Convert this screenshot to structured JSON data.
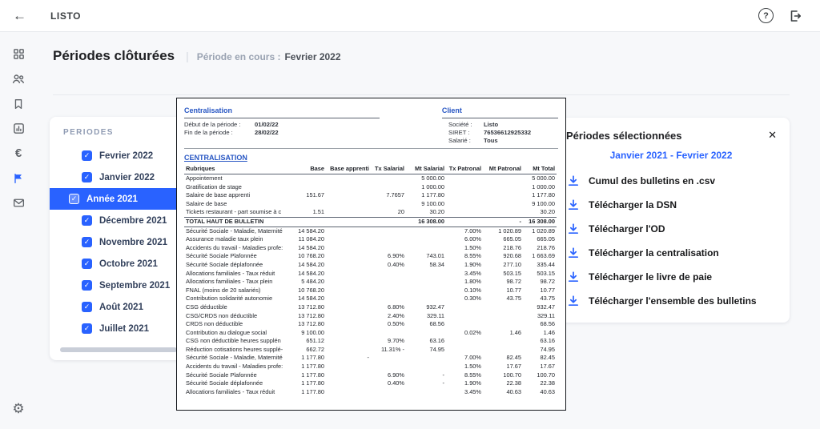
{
  "topbar": {
    "app_title": "LISTO"
  },
  "header": {
    "title": "Périodes clôturées",
    "separator": "|",
    "subtitle_label": "Période en cours :",
    "subtitle_value": "Fevrier 2022"
  },
  "periods_panel": {
    "title": "PERIODES",
    "check_glyph": "✓",
    "items": [
      {
        "label": "Fevrier 2022",
        "checked": true,
        "selected": false,
        "indent": true
      },
      {
        "label": "Janvier 2022",
        "checked": true,
        "selected": false,
        "indent": true
      },
      {
        "label": "Année 2021",
        "checked": true,
        "selected": true,
        "indent": false
      },
      {
        "label": "Décembre 2021",
        "checked": true,
        "selected": false,
        "indent": true
      },
      {
        "label": "Novembre 2021",
        "checked": true,
        "selected": false,
        "indent": true
      },
      {
        "label": "Octobre 2021",
        "checked": true,
        "selected": false,
        "indent": true
      },
      {
        "label": "Septembre 2021",
        "checked": true,
        "selected": false,
        "indent": true
      },
      {
        "label": "Août 2021",
        "checked": true,
        "selected": false,
        "indent": true
      },
      {
        "label": "Juillet 2021",
        "checked": true,
        "selected": false,
        "indent": true
      }
    ]
  },
  "preview": {
    "section_left_title": "Centralisation",
    "section_right_title": "Client",
    "meta_left": [
      {
        "label": "Début de la période :",
        "value": "01/02/22"
      },
      {
        "label": "Fin de la période :",
        "value": "28/02/22"
      }
    ],
    "meta_right": [
      {
        "label": "Société :",
        "value": "Listo"
      },
      {
        "label": "SIRET :",
        "value": "76536612925332"
      },
      {
        "label": "Salarié :",
        "value": "Tous"
      }
    ],
    "table_title": "CENTRALISATION",
    "columns": [
      "Rubriques",
      "Base",
      "Base apprenti",
      "Tx Salarial",
      "Mt Salarial",
      "Tx Patronal",
      "Mt Patronal",
      "Mt Total"
    ],
    "top_rows": [
      [
        "Appointement",
        "",
        "",
        "",
        "5 000.00",
        "",
        "",
        "5 000.00"
      ],
      [
        "Gratification de stage",
        "",
        "",
        "",
        "1 000.00",
        "",
        "",
        "1 000.00"
      ],
      [
        "Salaire de base apprenti",
        "151.67",
        "",
        "7.7657",
        "1 177.80",
        "",
        "",
        "1 177.80"
      ],
      [
        "Salaire de base",
        "",
        "",
        "",
        "9 100.00",
        "",
        "",
        "9 100.00"
      ],
      [
        "Tickets restaurant - part soumise à c",
        "1.51",
        "",
        "20",
        "30.20",
        "",
        "",
        "30.20"
      ]
    ],
    "total_row": [
      "TOTAL HAUT DE BULLETIN",
      "",
      "",
      "",
      "16 308.00",
      "",
      "-",
      "16 308.00"
    ],
    "bottom_rows": [
      [
        "Sécurité Sociale - Maladie, Maternité",
        "14 584.20",
        "",
        "",
        "",
        "7.00%",
        "1 020.89",
        "1 020.89"
      ],
      [
        "Assurance maladie taux plein",
        "11 084.20",
        "",
        "",
        "",
        "6.00%",
        "665.05",
        "665.05"
      ],
      [
        "Accidents du travail - Maladies profe:",
        "14 584.20",
        "",
        "",
        "",
        "1.50%",
        "218.76",
        "218.76"
      ],
      [
        "Sécurité Sociale Plafonnée",
        "10 768.20",
        "",
        "6.90%",
        "743.01",
        "8.55%",
        "920.68",
        "1 663.69"
      ],
      [
        "Sécurité Sociale déplafonnée",
        "14 584.20",
        "",
        "0.40%",
        "58.34",
        "1.90%",
        "277.10",
        "335.44"
      ],
      [
        "Allocations familiales - Taux réduit",
        "14 584.20",
        "",
        "",
        "",
        "3.45%",
        "503.15",
        "503.15"
      ],
      [
        "Allocations familiales - Taux plein",
        "5 484.20",
        "",
        "",
        "",
        "1.80%",
        "98.72",
        "98.72"
      ],
      [
        "FNAL (moins de 20 salariés)",
        "10 768.20",
        "",
        "",
        "",
        "0.10%",
        "10.77",
        "10.77"
      ],
      [
        "Contribution solidarité autonomie",
        "14 584.20",
        "",
        "",
        "",
        "0.30%",
        "43.75",
        "43.75"
      ],
      [
        "CSG déductible",
        "13 712.80",
        "",
        "6.80%",
        "932.47",
        "",
        "",
        "932.47"
      ],
      [
        "CSG/CRDS non déductible",
        "13 712.80",
        "",
        "2.40%",
        "329.11",
        "",
        "",
        "329.11"
      ],
      [
        "CRDS non déductible",
        "13 712.80",
        "",
        "0.50%",
        "68.56",
        "",
        "",
        "68.56"
      ],
      [
        "Contribution au dialogue social",
        "9 100.00",
        "",
        "",
        "",
        "0.02%",
        "1.46",
        "1.46"
      ],
      [
        "CSG non déductible heures supplén",
        "651.12",
        "",
        "9.70%",
        "63.16",
        "",
        "",
        "63.16"
      ],
      [
        "Réduction cotisations heures supplé-",
        "662.72",
        "",
        "11.31% -",
        "74.95",
        "",
        "",
        "74.95"
      ],
      [
        "Sécurité Sociale - Maladie, Maternité",
        "1 177.80",
        "-",
        "",
        "",
        "7.00%",
        "82.45",
        "82.45"
      ],
      [
        "Accidents du travail - Maladies profe:",
        "1 177.80",
        "",
        "",
        "",
        "1.50%",
        "17.67",
        "17.67"
      ],
      [
        "Sécurité Sociale Plafonnée",
        "1 177.80",
        "",
        "6.90%",
        "-",
        "8.55%",
        "100.70",
        "100.70"
      ],
      [
        "Sécurité Sociale déplafonnée",
        "1 177.80",
        "",
        "0.40%",
        "-",
        "1.90%",
        "22.38",
        "22.38"
      ],
      [
        "Allocations familiales - Taux réduit",
        "1 177.80",
        "",
        "",
        "",
        "3.45%",
        "40.63",
        "40.63"
      ]
    ]
  },
  "selected_panel": {
    "title": "Périodes sélectionnées",
    "close_glyph": "✕",
    "range": "Janvier 2021 - Fevrier 2022",
    "actions": [
      {
        "label": "Cumul des bulletins en .csv"
      },
      {
        "label": "Télécharger la DSN"
      },
      {
        "label": "Télécharger l'OD"
      },
      {
        "label": "Télécharger la centralisation"
      },
      {
        "label": "Télécharger le livre de paie"
      },
      {
        "label": "Télécharger l'ensemble des bulletins"
      }
    ]
  },
  "colors": {
    "accent": "#2962ff"
  }
}
